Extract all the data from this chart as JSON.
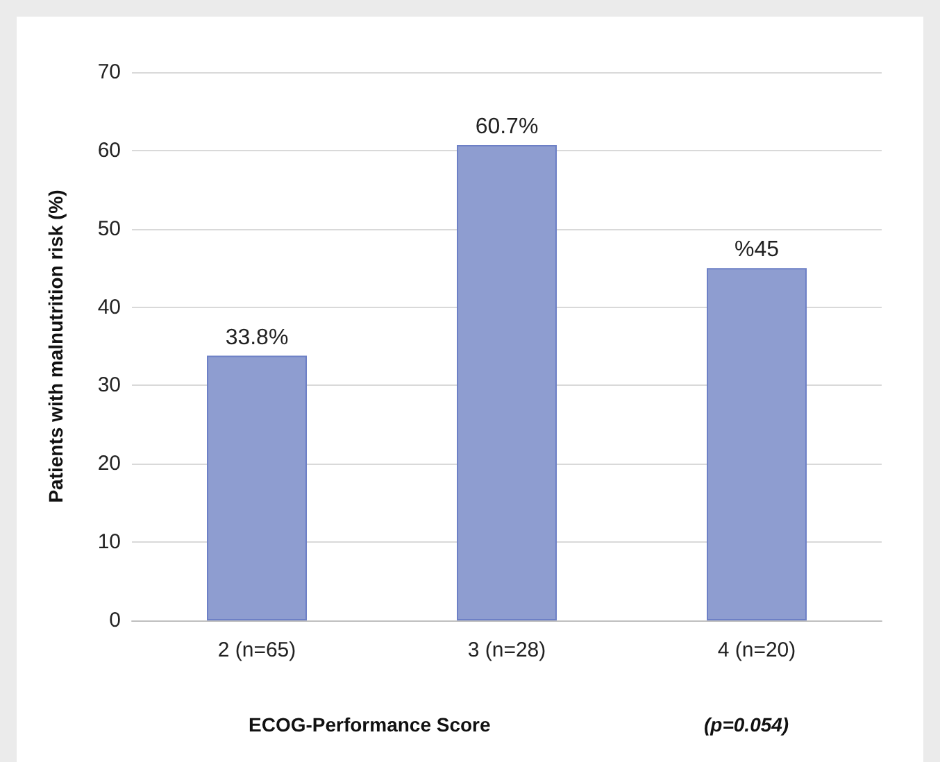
{
  "chart_data": {
    "type": "bar",
    "xlabel": "ECOG-Performance Score",
    "ylabel": "Patients with malnutrition risk (%)",
    "annotations": [
      "(p=0.054)"
    ],
    "categories": [
      "2 (n=65)",
      "3 (n=28)",
      "4 (n=20)"
    ],
    "values": [
      33.8,
      60.7,
      45
    ],
    "value_labels": [
      "33.8%",
      "60.7%",
      "%45"
    ],
    "color": "#8e9dd0",
    "ylim": [
      0,
      70
    ],
    "yticks": [
      0,
      10,
      20,
      30,
      40,
      50,
      60,
      70
    ],
    "grid": "y"
  }
}
